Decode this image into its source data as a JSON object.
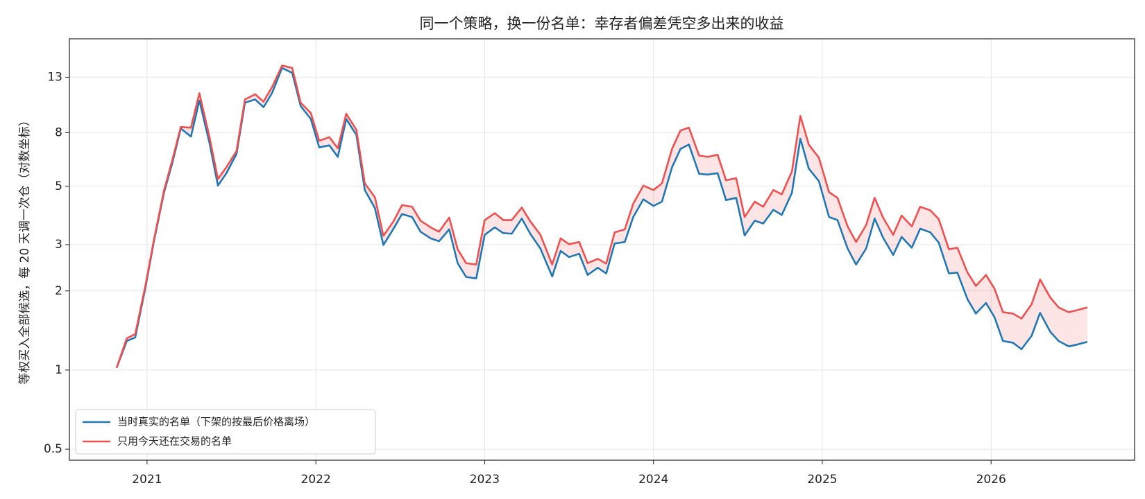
{
  "chart_data": {
    "type": "line",
    "title": "同一个策略，换一份名单：幸存者偏差凭空多出来的收益",
    "y_label": "等权买入全部候选，每 20 天调一次仓（对数坐标）",
    "x": [
      2020.82,
      2020.88,
      2020.93,
      2020.99,
      2021.04,
      2021.1,
      2021.15,
      2021.2,
      2021.26,
      2021.31,
      2021.37,
      2021.42,
      2021.47,
      2021.53,
      2021.58,
      2021.64,
      2021.69,
      2021.74,
      2021.8,
      2021.86,
      2021.91,
      2021.97,
      2022.02,
      2022.08,
      2022.13,
      2022.18,
      2022.24,
      2022.29,
      2022.35,
      2022.4,
      2022.46,
      2022.51,
      2022.57,
      2022.62,
      2022.68,
      2022.73,
      2022.79,
      2022.84,
      2022.89,
      2022.95,
      2023.0,
      2023.06,
      2023.11,
      2023.16,
      2023.22,
      2023.27,
      2023.33,
      2023.4,
      2023.45,
      2023.5,
      2023.56,
      2023.61,
      2023.67,
      2023.72,
      2023.77,
      2023.83,
      2023.88,
      2023.94,
      2024.0,
      2024.05,
      2024.11,
      2024.16,
      2024.21,
      2024.27,
      2024.32,
      2024.38,
      2024.43,
      2024.49,
      2024.54,
      2024.6,
      2024.65,
      2024.71,
      2024.76,
      2024.82,
      2024.87,
      2024.92,
      2024.98,
      2025.04,
      2025.09,
      2025.15,
      2025.2,
      2025.26,
      2025.31,
      2025.36,
      2025.42,
      2025.47,
      2025.53,
      2025.58,
      2025.64,
      2025.69,
      2025.75,
      2025.8,
      2025.86,
      2025.91,
      2025.97,
      2026.02,
      2026.07,
      2026.13,
      2026.18,
      2026.24,
      2026.29,
      2026.35,
      2026.4,
      2026.46,
      2026.51,
      2026.57
    ],
    "series": [
      {
        "name": "当时真实的名单（下架的按最后价格离场）",
        "color": "#1f77b4",
        "values": [
          1.02,
          1.29,
          1.33,
          2.05,
          3.07,
          4.72,
          6.14,
          8.3,
          7.73,
          10.6,
          7.3,
          5.03,
          5.61,
          6.64,
          10.4,
          10.7,
          10.0,
          11.3,
          14.1,
          13.5,
          10.1,
          9.02,
          7.03,
          7.16,
          6.47,
          9.02,
          7.84,
          4.84,
          4.13,
          2.99,
          3.45,
          3.92,
          3.82,
          3.36,
          3.17,
          3.09,
          3.43,
          2.55,
          2.26,
          2.23,
          3.27,
          3.49,
          3.32,
          3.3,
          3.77,
          3.3,
          2.9,
          2.27,
          2.84,
          2.69,
          2.77,
          2.3,
          2.45,
          2.33,
          3.03,
          3.07,
          3.82,
          4.46,
          4.21,
          4.37,
          5.91,
          6.94,
          7.21,
          5.58,
          5.54,
          5.61,
          4.43,
          4.52,
          3.25,
          3.7,
          3.61,
          4.07,
          3.89,
          4.72,
          7.59,
          5.84,
          5.23,
          3.82,
          3.72,
          2.9,
          2.52,
          2.9,
          3.77,
          3.19,
          2.74,
          3.21,
          2.92,
          3.45,
          3.34,
          3.05,
          2.33,
          2.35,
          1.86,
          1.64,
          1.8,
          1.59,
          1.29,
          1.27,
          1.2,
          1.35,
          1.65,
          1.4,
          1.29,
          1.23,
          1.25,
          1.28
        ]
      },
      {
        "name": "只用今天还在交易的名单",
        "color": "#ef4f4f",
        "values": [
          1.02,
          1.32,
          1.37,
          2.09,
          3.11,
          4.81,
          6.3,
          8.41,
          8.36,
          11.3,
          7.69,
          5.33,
          5.91,
          6.81,
          10.7,
          11.2,
          10.5,
          11.9,
          14.4,
          14.1,
          10.4,
          9.5,
          7.45,
          7.69,
          6.98,
          9.44,
          8.2,
          5.13,
          4.54,
          3.24,
          3.68,
          4.24,
          4.18,
          3.7,
          3.49,
          3.36,
          3.8,
          2.88,
          2.55,
          2.52,
          3.72,
          3.95,
          3.72,
          3.72,
          4.15,
          3.68,
          3.27,
          2.52,
          3.17,
          3.01,
          3.07,
          2.55,
          2.65,
          2.54,
          3.34,
          3.43,
          4.29,
          5.03,
          4.84,
          5.13,
          6.94,
          8.15,
          8.36,
          6.55,
          6.47,
          6.59,
          5.27,
          5.37,
          3.82,
          4.37,
          4.18,
          4.84,
          4.66,
          5.69,
          9.26,
          7.21,
          6.42,
          4.75,
          4.52,
          3.52,
          3.07,
          3.56,
          4.52,
          3.8,
          3.27,
          3.87,
          3.52,
          4.18,
          4.05,
          3.75,
          2.88,
          2.92,
          2.35,
          2.09,
          2.3,
          2.04,
          1.66,
          1.64,
          1.57,
          1.78,
          2.21,
          1.89,
          1.73,
          1.66,
          1.69,
          1.73
        ]
      }
    ],
    "fill_between_color": "#ef4f4f",
    "xlim": [
      2020.54,
      2026.85
    ],
    "xticks": [
      2021,
      2022,
      2023,
      2024,
      2025,
      2026
    ],
    "ylim": [
      0.454,
      18.2
    ],
    "yticks": [
      0.5,
      1,
      2,
      3,
      5,
      8,
      13
    ],
    "log_y": true,
    "grid": true,
    "legend": "lower left"
  }
}
